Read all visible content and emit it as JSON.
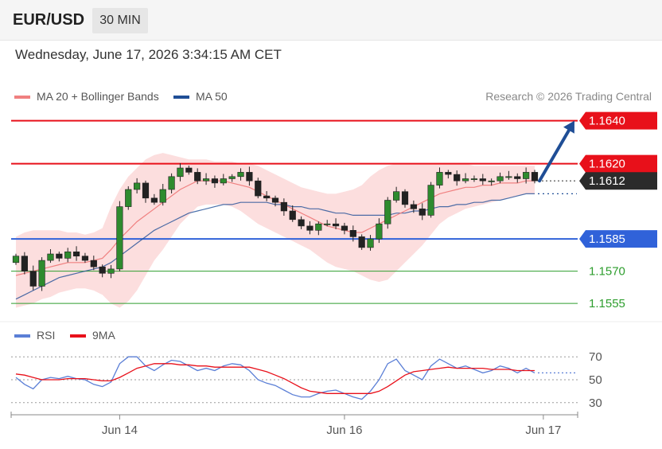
{
  "header": {
    "symbol": "EUR/USD",
    "timeframe": "30 MIN"
  },
  "datetime": "Wednesday, June 17, 2026 3:34:15 AM CET",
  "legend": {
    "ma20": {
      "label": "MA 20 + Bollinger Bands",
      "color": "#f08080"
    },
    "ma50": {
      "label": "MA 50",
      "color": "#1f4e96"
    }
  },
  "copyright": "Research © 2026 Trading Central",
  "rsi_legend": {
    "rsi": {
      "label": "RSI",
      "color": "#5b7fd6"
    },
    "ma9": {
      "label": "9MA",
      "color": "#e8101a"
    }
  },
  "chart_data": [
    {
      "type": "candlestick",
      "title": "EUR/USD",
      "timeframe": "30 MIN",
      "x_ticks": [
        {
          "label": "Jun 14",
          "index": 12
        },
        {
          "label": "Jun 16",
          "index": 38
        },
        {
          "label": "Jun 17",
          "index": 61
        }
      ],
      "ylim": [
        1.1548,
        1.1648
      ],
      "last_price": 1.1612,
      "levels": [
        {
          "label": "1.1640",
          "value": 1.164,
          "kind": "resistance",
          "color": "#e8101a"
        },
        {
          "label": "1.1620",
          "value": 1.162,
          "kind": "resistance",
          "color": "#e8101a"
        },
        {
          "label": "1.1585",
          "value": 1.1585,
          "kind": "pivot",
          "color": "#3062d9"
        },
        {
          "label": "1.1570",
          "value": 1.157,
          "kind": "support",
          "color": "#2e9e2e"
        },
        {
          "label": "1.1555",
          "value": 1.1555,
          "kind": "support",
          "color": "#2e9e2e"
        }
      ],
      "last_price_label": "1.1612",
      "projection": {
        "from": 1.1612,
        "to": 1.164,
        "direction": "up",
        "color": "#1f4e96"
      },
      "close": [
        1.1577,
        1.157,
        1.1563,
        1.1575,
        1.1578,
        1.1576,
        1.1579,
        1.1577,
        1.1575,
        1.1572,
        1.1569,
        1.1571,
        1.16,
        1.1608,
        1.1611,
        1.1604,
        1.1602,
        1.1608,
        1.1614,
        1.1618,
        1.1616,
        1.1612,
        1.1613,
        1.1611,
        1.1613,
        1.1614,
        1.1616,
        1.1612,
        1.1605,
        1.1604,
        1.1602,
        1.1598,
        1.1594,
        1.1591,
        1.1589,
        1.1592,
        1.1592,
        1.1591,
        1.1589,
        1.1586,
        1.1581,
        1.1585,
        1.1592,
        1.1603,
        1.1607,
        1.1601,
        1.1599,
        1.1596,
        1.161,
        1.1616,
        1.1615,
        1.1612,
        1.1613,
        1.1613,
        1.1612,
        1.1612,
        1.1614,
        1.1614,
        1.1613,
        1.1616,
        1.1612
      ],
      "ma20": [
        1.1568,
        1.1569,
        1.157,
        1.1571,
        1.1572,
        1.1573,
        1.1574,
        1.1574,
        1.1574,
        1.1575,
        1.1576,
        1.158,
        1.1585,
        1.1589,
        1.1593,
        1.1596,
        1.1599,
        1.1602,
        1.1605,
        1.1608,
        1.161,
        1.1612,
        1.1612,
        1.1612,
        1.1612,
        1.1611,
        1.161,
        1.1609,
        1.1607,
        1.1605,
        1.1603,
        1.1601,
        1.1599,
        1.1597,
        1.1595,
        1.1593,
        1.1591,
        1.159,
        1.1589,
        1.1588,
        1.1588,
        1.159,
        1.1592,
        1.1594,
        1.1596,
        1.1598,
        1.16,
        1.1602,
        1.1604,
        1.1606,
        1.1607,
        1.1608,
        1.1609,
        1.1609,
        1.161,
        1.161,
        1.1611,
        1.1611,
        1.1611,
        1.1612,
        1.1612
      ],
      "ma50": [
        1.1557,
        1.1559,
        1.1561,
        1.1563,
        1.1565,
        1.1567,
        1.1568,
        1.1569,
        1.157,
        1.1571,
        1.1572,
        1.1574,
        1.1577,
        1.158,
        1.1583,
        1.1586,
        1.1589,
        1.1591,
        1.1593,
        1.1595,
        1.1597,
        1.1598,
        1.1599,
        1.16,
        1.1601,
        1.1601,
        1.1602,
        1.1602,
        1.1602,
        1.1602,
        1.1601,
        1.1601,
        1.16,
        1.16,
        1.1599,
        1.1599,
        1.1598,
        1.1597,
        1.1597,
        1.1596,
        1.1596,
        1.1596,
        1.1596,
        1.1596,
        1.1597,
        1.1597,
        1.1598,
        1.1598,
        1.1599,
        1.16,
        1.16,
        1.1601,
        1.1601,
        1.1602,
        1.1602,
        1.1603,
        1.1603,
        1.1604,
        1.1605,
        1.1606,
        1.1606
      ],
      "bb_upper": [
        1.1586,
        1.1588,
        1.1589,
        1.1589,
        1.1589,
        1.1589,
        1.1588,
        1.1588,
        1.1587,
        1.1588,
        1.159,
        1.16,
        1.1608,
        1.1614,
        1.1618,
        1.1622,
        1.1624,
        1.1625,
        1.1624,
        1.1623,
        1.1622,
        1.1622,
        1.1622,
        1.1621,
        1.1621,
        1.1621,
        1.162,
        1.162,
        1.1619,
        1.1617,
        1.1615,
        1.1613,
        1.1611,
        1.1609,
        1.1608,
        1.1607,
        1.1606,
        1.1606,
        1.1607,
        1.1608,
        1.161,
        1.1614,
        1.1617,
        1.1619,
        1.162,
        1.162,
        1.162,
        1.162,
        1.162,
        1.162,
        1.162,
        1.162,
        1.162,
        1.1619,
        1.1619,
        1.1619,
        1.1619,
        1.1619,
        1.1619,
        1.1619,
        1.1619
      ],
      "bb_lower": [
        1.1553,
        1.1554,
        1.1555,
        1.1557,
        1.1558,
        1.156,
        1.1561,
        1.1562,
        1.1562,
        1.1561,
        1.1559,
        1.1555,
        1.1553,
        1.1556,
        1.1561,
        1.1568,
        1.1575,
        1.158,
        1.1586,
        1.1592,
        1.1596,
        1.16,
        1.1601,
        1.1601,
        1.1601,
        1.16,
        1.1598,
        1.1595,
        1.1592,
        1.159,
        1.1588,
        1.1586,
        1.1584,
        1.1582,
        1.158,
        1.1577,
        1.1574,
        1.1572,
        1.1571,
        1.157,
        1.1568,
        1.1566,
        1.1565,
        1.1566,
        1.157,
        1.1574,
        1.1578,
        1.1582,
        1.1587,
        1.1592,
        1.1595,
        1.1597,
        1.1599,
        1.16,
        1.1601,
        1.1602,
        1.1603,
        1.1604,
        1.1605,
        1.1606,
        1.1606
      ]
    },
    {
      "type": "line",
      "title": "RSI",
      "ylim": [
        25,
        75
      ],
      "y_ticks": [
        70,
        50,
        30
      ],
      "gridlines": [
        70,
        50,
        30
      ],
      "series": [
        {
          "name": "RSI",
          "color": "#5b7fd6",
          "values": [
            52,
            46,
            42,
            50,
            52,
            51,
            53,
            51,
            50,
            46,
            44,
            48,
            64,
            70,
            70,
            62,
            58,
            63,
            67,
            66,
            62,
            58,
            60,
            58,
            62,
            64,
            63,
            58,
            50,
            47,
            45,
            41,
            37,
            35,
            35,
            38,
            40,
            41,
            38,
            35,
            33,
            40,
            50,
            64,
            68,
            58,
            54,
            50,
            62,
            68,
            64,
            60,
            62,
            59,
            56,
            58,
            62,
            60,
            56,
            60,
            56
          ]
        },
        {
          "name": "9MA",
          "color": "#e8101a",
          "values": [
            55,
            54,
            52,
            50,
            50,
            50,
            51,
            51,
            51,
            50,
            49,
            49,
            52,
            56,
            60,
            62,
            64,
            64,
            64,
            63,
            63,
            62,
            62,
            61,
            61,
            61,
            61,
            61,
            59,
            57,
            54,
            51,
            47,
            43,
            40,
            39,
            38,
            38,
            38,
            38,
            38,
            38,
            40,
            44,
            49,
            54,
            57,
            58,
            59,
            60,
            61,
            60,
            60,
            60,
            60,
            59,
            59,
            59,
            58,
            58,
            58
          ]
        }
      ]
    }
  ]
}
